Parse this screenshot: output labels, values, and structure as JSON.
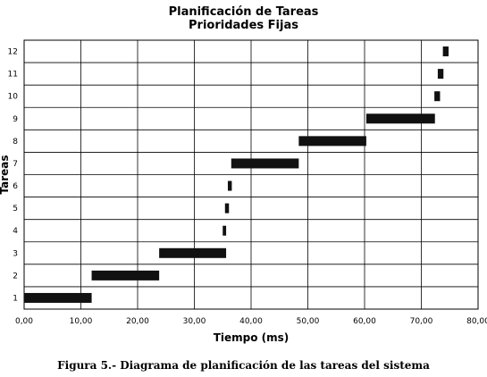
{
  "chart_data": {
    "type": "bar",
    "subtype": "gantt",
    "title": "Planificación de Tareas",
    "subtitle": "Prioridades Fijas",
    "xlabel": "Tiempo (ms)",
    "ylabel": "Tareas",
    "xlim": [
      0,
      80
    ],
    "x_ticks": [
      "0,00",
      "10,00",
      "20,00",
      "30,00",
      "40,00",
      "50,00",
      "60,00",
      "70,00",
      "80,00"
    ],
    "categories": [
      "1",
      "2",
      "3",
      "4",
      "5",
      "6",
      "7",
      "8",
      "9",
      "10",
      "11",
      "12"
    ],
    "tasks": [
      {
        "task": "1",
        "start": 0.0,
        "end": 11.9
      },
      {
        "task": "2",
        "start": 11.9,
        "end": 23.8
      },
      {
        "task": "3",
        "start": 23.8,
        "end": 35.6
      },
      {
        "task": "4",
        "start": 35.0,
        "end": 35.6
      },
      {
        "task": "5",
        "start": 35.4,
        "end": 36.1
      },
      {
        "task": "6",
        "start": 35.9,
        "end": 36.6
      },
      {
        "task": "7",
        "start": 36.5,
        "end": 48.4
      },
      {
        "task": "8",
        "start": 48.4,
        "end": 60.3
      },
      {
        "task": "9",
        "start": 60.3,
        "end": 72.4
      },
      {
        "task": "10",
        "start": 72.3,
        "end": 73.3
      },
      {
        "task": "11",
        "start": 72.9,
        "end": 73.9
      },
      {
        "task": "12",
        "start": 73.8,
        "end": 74.8
      }
    ],
    "grid": true,
    "bar_color": "#111111"
  },
  "caption": "Figura 5.- Diagrama de planificación de las tareas del sistema"
}
